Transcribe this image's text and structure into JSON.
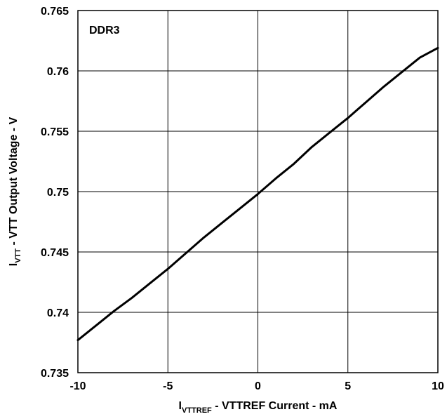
{
  "chart_data": {
    "type": "line",
    "annotation": "DDR3",
    "xlabel": {
      "prefix": "I",
      "subscript": "VTTREF",
      "suffix": " - VTTREF Current - mA"
    },
    "ylabel": {
      "prefix": "I",
      "subscript": "VTT",
      "suffix": " - VTT Output Voltage - V"
    },
    "xlim": [
      -10,
      10
    ],
    "ylim": [
      0.735,
      0.765
    ],
    "xticks": [
      -10,
      -5,
      0,
      5,
      10
    ],
    "xtick_labels": [
      "-10",
      "-5",
      "0",
      "5",
      "10"
    ],
    "yticks": [
      0.735,
      0.74,
      0.745,
      0.75,
      0.755,
      0.76,
      0.765
    ],
    "ytick_labels": [
      "0.735",
      "0.74",
      "0.745",
      "0.75",
      "0.755",
      "0.76",
      "0.765"
    ],
    "grid": true,
    "series": [
      {
        "color": "#000000",
        "x": [
          -10,
          -9,
          -8,
          -7,
          -6,
          -5,
          -4,
          -3,
          -2,
          -1,
          0,
          1,
          2,
          3,
          4,
          5,
          6,
          7,
          8,
          9,
          10
        ],
        "y": [
          0.7377,
          0.7389,
          0.7401,
          0.7412,
          0.7424,
          0.7436,
          0.7449,
          0.7462,
          0.7474,
          0.7486,
          0.7498,
          0.7511,
          0.7523,
          0.7537,
          0.7549,
          0.7561,
          0.7574,
          0.7587,
          0.7599,
          0.7611,
          0.7619
        ]
      }
    ]
  }
}
